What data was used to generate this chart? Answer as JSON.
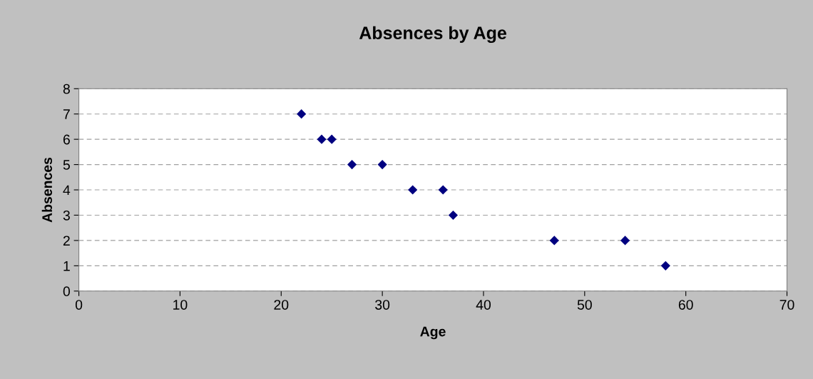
{
  "chart_data": {
    "type": "scatter",
    "title": "Absences by Age",
    "xlabel": "Age",
    "ylabel": "Absences",
    "x": [
      22,
      24,
      25,
      27,
      30,
      33,
      36,
      37,
      47,
      54,
      58
    ],
    "values": [
      7,
      6,
      6,
      5,
      5,
      4,
      4,
      3,
      2,
      2,
      1
    ],
    "color": "#000080",
    "marker": "diamond",
    "xlim": [
      0,
      70
    ],
    "xticks": [
      0,
      10,
      20,
      30,
      40,
      50,
      60,
      70
    ],
    "ylim": [
      0,
      8
    ],
    "yticks": [
      0,
      1,
      2,
      3,
      4,
      5,
      6,
      7,
      8
    ],
    "grid": "y",
    "legend": false
  }
}
